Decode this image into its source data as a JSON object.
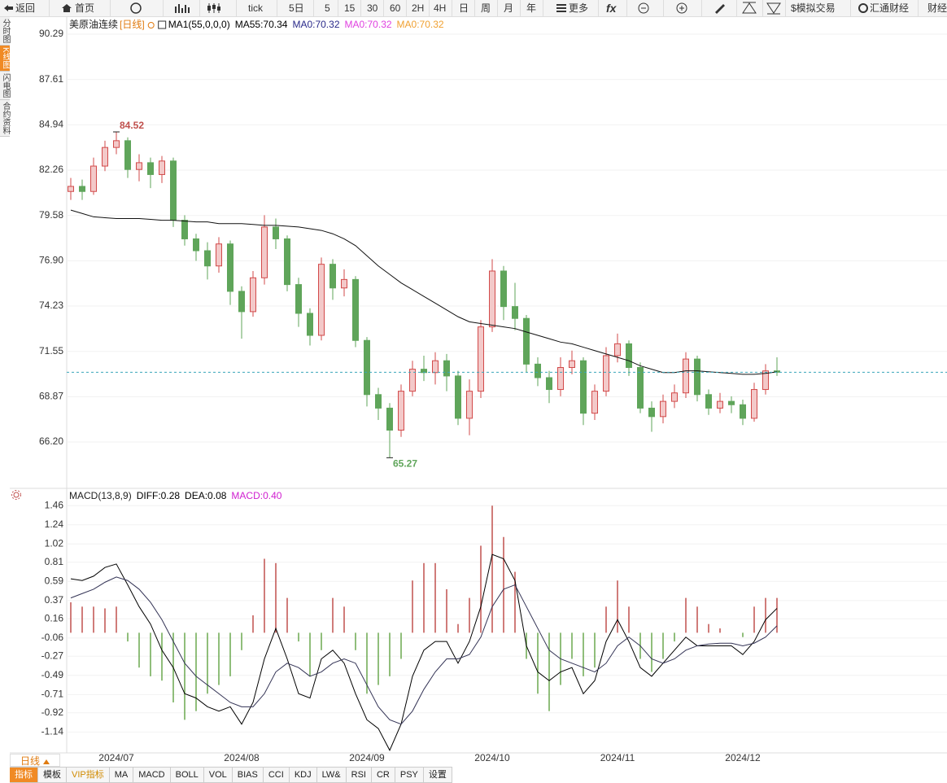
{
  "toolbar": {
    "back": "返回",
    "home": "首页",
    "periods": [
      "tick",
      "5日",
      "5",
      "15",
      "30",
      "60",
      "2H",
      "4H",
      "日",
      "周",
      "月",
      "年"
    ],
    "more": "更多",
    "fx": "fx",
    "sim_trade": "$模拟交易",
    "fx678": "汇通财经",
    "finance": "财经"
  },
  "side_tabs": [
    "分时图",
    "K线图",
    "闪电图",
    "合约资料"
  ],
  "period_tab": "日线",
  "indicator_tabs": [
    "指标",
    "模板",
    "VIP指标",
    "MA",
    "MACD",
    "BOLL",
    "VOL",
    "BIAS",
    "CCI",
    "KDJ",
    "LW&",
    "RSI",
    "CR",
    "PSY",
    "设置"
  ],
  "chart_data": [
    {
      "type": "candlestick",
      "title": "美原油连续",
      "period": "[日线]",
      "legend": [
        "MA1(55,0,0,0)",
        "MA55:70.34",
        "MA0:70.32",
        "MA0:70.32",
        "MA0:70.32"
      ],
      "legend_colors": [
        "#000000",
        "#000000",
        "#2a2a8a",
        "#e040e0",
        "#f0a030"
      ],
      "up_color": "#d24a4a",
      "down_color": "#5fa55a",
      "candles": {
        "open": [
          81.0,
          81.3,
          81.0,
          82.5,
          83.6,
          84.0,
          82.3,
          82.7,
          82.0,
          82.8,
          79.3,
          78.2,
          77.5,
          76.6,
          77.9,
          75.1,
          73.9,
          75.9,
          78.9,
          78.2,
          75.5,
          73.8,
          72.5,
          76.7,
          75.3,
          75.8,
          72.2,
          69.0,
          68.2,
          66.9,
          69.2,
          70.5,
          70.3,
          71.0,
          70.1,
          67.6,
          69.2,
          73.0,
          76.3,
          74.2,
          73.5,
          70.8,
          70.0,
          69.3,
          70.6,
          71.0,
          67.9,
          69.2,
          71.3,
          72.0,
          70.6,
          68.2,
          67.7,
          68.6,
          69.1,
          71.1,
          69.0,
          68.2,
          68.6,
          68.4,
          67.6,
          69.3,
          70.4
        ],
        "high": [
          81.8,
          81.7,
          83.0,
          84.0,
          84.52,
          84.2,
          83.2,
          83.0,
          83.1,
          83.0,
          79.6,
          78.5,
          78.0,
          78.3,
          78.1,
          75.4,
          76.3,
          79.6,
          79.4,
          78.4,
          75.9,
          74.1,
          77.1,
          77.0,
          76.4,
          76.0,
          72.4,
          69.4,
          68.5,
          69.6,
          71.0,
          71.3,
          71.5,
          71.4,
          70.4,
          69.9,
          73.4,
          77.0,
          76.6,
          75.6,
          73.7,
          71.2,
          70.4,
          71.2,
          71.6,
          71.2,
          69.6,
          71.8,
          72.6,
          72.2,
          70.9,
          68.6,
          69.0,
          69.6,
          71.5,
          71.3,
          69.3,
          69.1,
          68.9,
          68.7,
          69.7,
          70.8,
          71.2
        ],
        "low": [
          80.5,
          80.5,
          80.8,
          82.2,
          83.2,
          81.8,
          81.6,
          81.2,
          81.5,
          78.9,
          77.8,
          76.9,
          75.8,
          76.2,
          74.3,
          72.3,
          73.6,
          75.5,
          77.6,
          75.1,
          73.0,
          71.9,
          72.2,
          74.6,
          74.8,
          71.8,
          68.3,
          67.5,
          65.27,
          66.5,
          68.9,
          69.8,
          69.6,
          69.2,
          67.2,
          66.6,
          68.8,
          72.7,
          73.4,
          72.8,
          70.3,
          69.5,
          68.5,
          68.9,
          70.2,
          67.2,
          67.5,
          68.9,
          70.9,
          70.1,
          67.9,
          66.8,
          67.3,
          68.2,
          68.8,
          68.6,
          67.8,
          67.9,
          67.9,
          67.2,
          67.4,
          69.0,
          70.1
        ],
        "close": [
          81.3,
          81.0,
          82.5,
          83.6,
          84.0,
          82.3,
          82.7,
          82.0,
          82.8,
          79.3,
          78.2,
          77.5,
          76.6,
          77.9,
          75.1,
          73.9,
          75.9,
          78.9,
          78.2,
          75.5,
          73.8,
          72.5,
          76.7,
          75.3,
          75.8,
          72.2,
          69.0,
          68.2,
          66.9,
          69.2,
          70.5,
          70.3,
          71.0,
          70.1,
          67.6,
          69.2,
          73.0,
          76.3,
          74.2,
          73.5,
          70.8,
          70.0,
          69.3,
          70.6,
          71.0,
          67.9,
          69.2,
          71.3,
          72.0,
          70.6,
          68.2,
          67.7,
          68.6,
          69.1,
          71.1,
          69.0,
          68.2,
          68.6,
          68.4,
          67.6,
          69.3,
          70.4,
          70.32
        ]
      },
      "ma": {
        "color": "#111111",
        "values": [
          79.9,
          79.7,
          79.5,
          79.45,
          79.4,
          79.4,
          79.4,
          79.35,
          79.3,
          79.3,
          79.25,
          79.2,
          79.2,
          79.1,
          79.1,
          79.1,
          79.05,
          79.0,
          79.0,
          78.95,
          78.9,
          78.8,
          78.7,
          78.5,
          78.2,
          77.8,
          77.2,
          76.6,
          76.1,
          75.6,
          75.2,
          74.8,
          74.4,
          74.0,
          73.6,
          73.3,
          73.2,
          73.1,
          73.0,
          72.9,
          72.7,
          72.5,
          72.3,
          72.1,
          72.0,
          71.8,
          71.6,
          71.4,
          71.2,
          71.0,
          70.7,
          70.5,
          70.3,
          70.3,
          70.4,
          70.4,
          70.35,
          70.3,
          70.25,
          70.2,
          70.2,
          70.25,
          70.34
        ]
      },
      "last_price": 70.32,
      "last_price_color": "#3aa6b9",
      "ylim": [
        63.46,
        91.35
      ],
      "yticks": [
        90.29,
        87.61,
        84.94,
        82.26,
        79.58,
        {
          "value": 76.9,
          "label": "76.90"
        },
        74.23,
        71.55,
        68.87,
        {
          "value": 66.2,
          "label": "66.20"
        }
      ],
      "grid": true
    },
    {
      "type": "macd",
      "title": "MACD(13,8,9)",
      "legend": [
        "DIFF:0.28",
        "DEA:0.08",
        "MACD:0.40"
      ],
      "legend_colors": [
        "#000000",
        "#000000",
        "#d020d0"
      ],
      "categories": [
        null,
        null,
        null,
        null,
        "2024/07",
        null,
        null,
        null,
        null,
        null,
        null,
        null,
        null,
        null,
        null,
        "2024/08",
        null,
        null,
        null,
        null,
        null,
        null,
        null,
        null,
        null,
        null,
        "2024/09",
        null,
        null,
        null,
        null,
        null,
        null,
        null,
        null,
        null,
        null,
        "2024/10",
        null,
        null,
        null,
        null,
        null,
        null,
        null,
        null,
        null,
        null,
        "2024/11",
        null,
        null,
        null,
        null,
        null,
        null,
        null,
        null,
        null,
        null,
        "2024/12",
        null,
        null,
        null
      ],
      "histogram": {
        "up_color": "#c0504d",
        "down_color": "#6aa84f",
        "values": [
          0.35,
          0.3,
          0.3,
          0.28,
          0.3,
          -0.1,
          -0.4,
          -0.5,
          -0.55,
          -0.8,
          -1.0,
          -0.9,
          -0.7,
          -0.6,
          -0.5,
          -0.2,
          0.2,
          0.85,
          0.8,
          0.4,
          -0.1,
          -0.5,
          -0.2,
          0.4,
          0.3,
          -0.2,
          -0.7,
          -0.6,
          -0.5,
          -0.3,
          0.6,
          0.8,
          0.8,
          0.5,
          0.1,
          0.4,
          1.0,
          1.46,
          1.1,
          0.7,
          -0.3,
          -0.7,
          -0.9,
          -0.6,
          -0.3,
          -0.5,
          -0.4,
          0.3,
          0.6,
          0.3,
          -0.3,
          -0.45,
          -0.3,
          -0.1,
          0.4,
          0.3,
          0.1,
          0.05,
          0.0,
          -0.05,
          0.3,
          0.4,
          0.4
        ],
        "value_labels": {
          "62": "0.40"
        }
      },
      "diff": {
        "color": "#000000",
        "values": [
          0.62,
          0.6,
          0.65,
          0.75,
          0.79,
          0.55,
          0.3,
          0.1,
          -0.2,
          -0.4,
          -0.7,
          -0.75,
          -0.85,
          -0.9,
          -0.85,
          -1.05,
          -0.8,
          -0.3,
          0.05,
          -0.3,
          -0.7,
          -0.75,
          -0.3,
          -0.2,
          -0.35,
          -0.7,
          -1.0,
          -1.1,
          -1.35,
          -1.05,
          -0.5,
          -0.2,
          -0.1,
          -0.1,
          -0.35,
          -0.1,
          0.3,
          0.9,
          0.85,
          0.6,
          -0.15,
          -0.45,
          -0.55,
          -0.45,
          -0.4,
          -0.7,
          -0.55,
          -0.1,
          0.15,
          -0.1,
          -0.4,
          -0.5,
          -0.35,
          -0.2,
          -0.05,
          -0.15,
          -0.15,
          -0.15,
          -0.15,
          -0.25,
          -0.1,
          0.15,
          0.28
        ]
      },
      "dea": {
        "color": "#333355",
        "values": [
          0.4,
          0.45,
          0.5,
          0.58,
          0.64,
          0.6,
          0.5,
          0.35,
          0.15,
          -0.1,
          -0.35,
          -0.5,
          -0.6,
          -0.7,
          -0.8,
          -0.85,
          -0.85,
          -0.7,
          -0.45,
          -0.35,
          -0.4,
          -0.5,
          -0.45,
          -0.35,
          -0.3,
          -0.35,
          -0.6,
          -0.85,
          -1.0,
          -1.05,
          -0.9,
          -0.65,
          -0.45,
          -0.3,
          -0.3,
          -0.25,
          -0.05,
          0.3,
          0.5,
          0.55,
          0.3,
          0.05,
          -0.2,
          -0.3,
          -0.35,
          -0.4,
          -0.45,
          -0.35,
          -0.15,
          -0.05,
          -0.15,
          -0.3,
          -0.35,
          -0.3,
          -0.2,
          -0.15,
          -0.13,
          -0.12,
          -0.12,
          -0.15,
          -0.12,
          -0.05,
          0.08
        ]
      },
      "ylim": [
        -1.38,
        1.64
      ],
      "yticks": [
        1.46,
        1.24,
        1.02,
        0.81,
        0.59,
        0.37,
        0.16,
        -0.06,
        -0.27,
        -0.49,
        -0.71,
        -0.92,
        -1.14
      ],
      "grid": true
    }
  ]
}
